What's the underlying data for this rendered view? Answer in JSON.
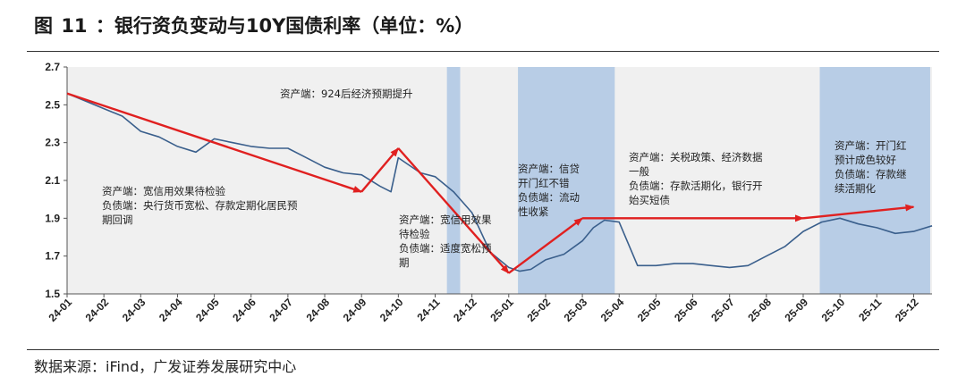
{
  "figure": {
    "title_prefix": "图",
    "title_num": "11",
    "title_text": "：银行资负变动与10Y国债利率（单位：%）",
    "source": "数据来源：iFind，广发证券发展研究中心"
  },
  "chart_data": {
    "type": "line",
    "title": "银行资负变动与10Y国债利率（单位：%）",
    "ylim": [
      1.5,
      2.7
    ],
    "yticks": [
      "1.5",
      "1.7",
      "1.9",
      "2.1",
      "2.3",
      "2.5",
      "2.7"
    ],
    "xticks": [
      "24-01",
      "24-02",
      "24-03",
      "24-04",
      "24-05",
      "24-06",
      "24-07",
      "24-08",
      "24-09",
      "24-10",
      "24-11",
      "24-12",
      "25-01",
      "25-02",
      "25-03",
      "25-04",
      "25-05",
      "25-06",
      "25-07",
      "25-08",
      "25-09",
      "25-10",
      "25-11",
      "25-12"
    ],
    "series": [
      {
        "x": [
          "24-01",
          "24-01.5",
          "24-02",
          "24-02.5",
          "24-03",
          "24-03.5",
          "24-04",
          "24-04.5",
          "24-05",
          "24-05.5",
          "24-06",
          "24-06.5",
          "24-07",
          "24-07.5",
          "24-08",
          "24-08.5",
          "24-09",
          "24-09.5",
          "24-09.8",
          "24-10",
          "24-10.3",
          "24-10.6",
          "24-11",
          "24-11.5",
          "24-12",
          "24-12.5",
          "25-01",
          "25-01.3",
          "25-01.6",
          "25-02",
          "25-02.5",
          "25-03",
          "25-03.3",
          "25-03.6",
          "25-04",
          "25-04.5",
          "25-05",
          "25-05.5",
          "25-06",
          "25-06.5",
          "25-07",
          "25-07.5",
          "25-08",
          "25-08.5",
          "25-09",
          "25-09.5",
          "25-10",
          "25-10.5",
          "25-11",
          "25-11.5",
          "25-12",
          "25-12.5"
        ],
        "values": [
          2.56,
          2.52,
          2.48,
          2.44,
          2.36,
          2.33,
          2.28,
          2.25,
          2.32,
          2.3,
          2.28,
          2.27,
          2.27,
          2.22,
          2.17,
          2.14,
          2.13,
          2.07,
          2.04,
          2.22,
          2.18,
          2.14,
          2.12,
          2.04,
          1.93,
          1.72,
          1.64,
          1.62,
          1.63,
          1.68,
          1.71,
          1.78,
          1.85,
          1.89,
          1.88,
          1.65,
          1.65,
          1.66,
          1.66,
          1.65,
          1.64,
          1.65,
          1.7,
          1.75,
          1.83,
          1.88,
          1.9,
          1.87,
          1.85,
          1.82,
          1.83,
          1.86
        ]
      }
    ],
    "shaded_periods": [
      {
        "start": 10.32,
        "end": 10.68,
        "label": "资产端：924后经济预期提升"
      },
      {
        "start": 12.25,
        "end": 14.88,
        "label": "资产端：信贷开门红不错；负债端：流动性收紧"
      },
      {
        "start": 20.45,
        "end": 23.45,
        "label": "资产端：开门红预计成色较好；负债端：存款继续活期化"
      }
    ],
    "trend_arrows": [
      {
        "from": [
          "24-01",
          2.56
        ],
        "to": [
          "24-09",
          2.04
        ]
      },
      {
        "from": [
          "24-09",
          2.04
        ],
        "to": [
          "24-10",
          2.27
        ]
      },
      {
        "from": [
          "24-10",
          2.27
        ],
        "to": [
          "25-01",
          1.61
        ]
      },
      {
        "from": [
          "25-01",
          1.61
        ],
        "to": [
          "25-03",
          1.9
        ]
      },
      {
        "from": [
          "25-03",
          1.9
        ],
        "to": [
          "25-09",
          1.9
        ]
      },
      {
        "from": [
          "25-09",
          1.9
        ],
        "to": [
          "25-12",
          1.96
        ]
      }
    ],
    "annotations": [
      [
        "资产端：924后经济预期提升"
      ],
      [
        "资产端：宽信用效果待检验",
        "负债端：央行货币宽松、存款定期化居民预",
        "期回调"
      ],
      [
        "资产端：宽信用效果",
        "待检验",
        "负债端：适度宽松预",
        "期"
      ],
      [
        "资产端：信贷",
        "开门红不错",
        "负债端：流动",
        "性收紧"
      ],
      [
        "资产端：关税政策、经济数据",
        "一般",
        "负债端：存款活期化，银行开",
        "始买短债"
      ],
      [
        "资产端：开门红",
        "预计成色较好",
        "负债端：存款继",
        "续活期化"
      ]
    ],
    "colors": {
      "line": "#3a5f8c",
      "arrow": "#e02020",
      "shade": "#b8cde6",
      "plot_bg": "#f0f0f0"
    }
  }
}
